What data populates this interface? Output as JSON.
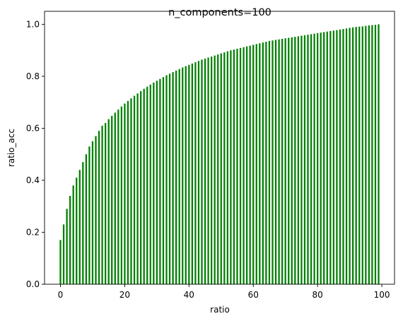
{
  "chart_data": {
    "type": "bar",
    "title": "n_components=100",
    "xlabel": "ratio",
    "ylabel": "ratio_acc",
    "xlim": [
      -4.95,
      103.95
    ],
    "ylim": [
      0,
      1.05
    ],
    "xticks": [
      0,
      20,
      40,
      60,
      80,
      100
    ],
    "yticks": [
      0.0,
      0.2,
      0.4,
      0.6,
      0.8,
      1.0
    ],
    "grid": false,
    "bar_color": "#008000",
    "x": [
      0,
      1,
      2,
      3,
      4,
      5,
      6,
      7,
      8,
      9,
      10,
      11,
      12,
      13,
      14,
      15,
      16,
      17,
      18,
      19,
      20,
      21,
      22,
      23,
      24,
      25,
      26,
      27,
      28,
      29,
      30,
      31,
      32,
      33,
      34,
      35,
      36,
      37,
      38,
      39,
      40,
      41,
      42,
      43,
      44,
      45,
      46,
      47,
      48,
      49,
      50,
      51,
      52,
      53,
      54,
      55,
      56,
      57,
      58,
      59,
      60,
      61,
      62,
      63,
      64,
      65,
      66,
      67,
      68,
      69,
      70,
      71,
      72,
      73,
      74,
      75,
      76,
      77,
      78,
      79,
      80,
      81,
      82,
      83,
      84,
      85,
      86,
      87,
      88,
      89,
      90,
      91,
      92,
      93,
      94,
      95,
      96,
      97,
      98,
      99
    ],
    "values": [
      0.17,
      0.23,
      0.29,
      0.34,
      0.38,
      0.41,
      0.44,
      0.47,
      0.5,
      0.53,
      0.55,
      0.57,
      0.59,
      0.61,
      0.62,
      0.635,
      0.648,
      0.66,
      0.672,
      0.684,
      0.695,
      0.705,
      0.715,
      0.725,
      0.734,
      0.743,
      0.752,
      0.76,
      0.768,
      0.776,
      0.783,
      0.79,
      0.797,
      0.804,
      0.81,
      0.816,
      0.822,
      0.828,
      0.834,
      0.839,
      0.844,
      0.849,
      0.854,
      0.859,
      0.864,
      0.868,
      0.872,
      0.876,
      0.88,
      0.884,
      0.888,
      0.892,
      0.896,
      0.9,
      0.903,
      0.906,
      0.909,
      0.912,
      0.915,
      0.918,
      0.921,
      0.924,
      0.927,
      0.93,
      0.933,
      0.936,
      0.938,
      0.94,
      0.942,
      0.944,
      0.946,
      0.948,
      0.95,
      0.952,
      0.954,
      0.956,
      0.958,
      0.96,
      0.962,
      0.964,
      0.966,
      0.968,
      0.97,
      0.972,
      0.974,
      0.976,
      0.978,
      0.98,
      0.982,
      0.984,
      0.986,
      0.988,
      0.99,
      0.991,
      0.992,
      0.994,
      0.996,
      0.997,
      0.998,
      1.0
    ]
  }
}
